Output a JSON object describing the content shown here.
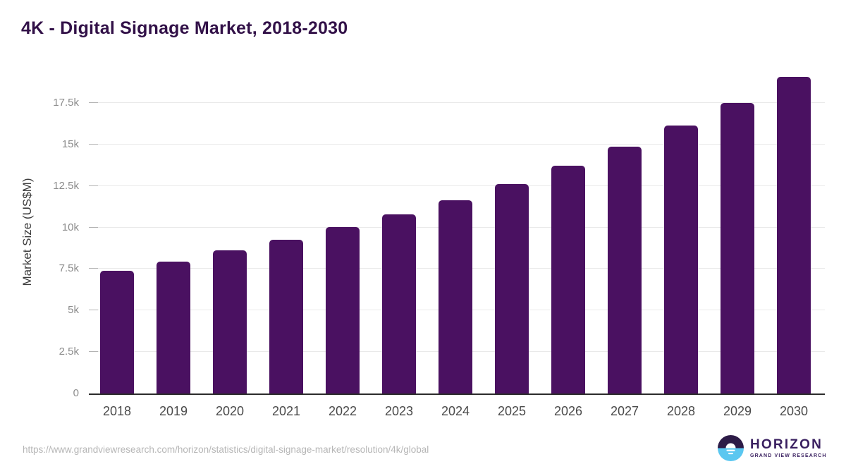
{
  "chart_data": {
    "type": "bar",
    "title": "4K - Digital Signage Market, 2018-2030",
    "categories": [
      "2018",
      "2019",
      "2020",
      "2021",
      "2022",
      "2023",
      "2024",
      "2025",
      "2026",
      "2027",
      "2028",
      "2029",
      "2030"
    ],
    "values": [
      7380,
      7950,
      8610,
      9280,
      10010,
      10810,
      11650,
      12630,
      13730,
      14890,
      16160,
      17500,
      19090
    ],
    "xlabel": "",
    "ylabel": "Market Size (US$M)",
    "ylim": [
      0,
      19500
    ],
    "yticks": [
      0,
      2500,
      5000,
      7500,
      10000,
      12500,
      15000,
      17500
    ],
    "ytick_labels": [
      "0",
      "2.5k",
      "5k",
      "7.5k",
      "10k",
      "12.5k",
      "15k",
      "17.5k"
    ],
    "grid": true,
    "legend": "none",
    "bar_color": "#4a1161"
  },
  "colors": {
    "title_text": "#321148",
    "bar": "#4a1161",
    "axis_line": "#2b2b2b",
    "grid_line": "#e9e9e9",
    "y_tick_text": "#8c8c8c",
    "x_tick_text": "#4a4a4a",
    "source_text": "#b6b6b6",
    "logo_purple": "#3a2060",
    "logo_icon_dark": "#2d1b47",
    "logo_icon_blue": "#5bc7f0"
  },
  "footer": {
    "source_url": "https://www.grandviewresearch.com/horizon/statistics/digital-signage-market/resolution/4k/global",
    "logo": {
      "name": "HORIZON",
      "subtitle": "GRAND VIEW RESEARCH"
    }
  }
}
